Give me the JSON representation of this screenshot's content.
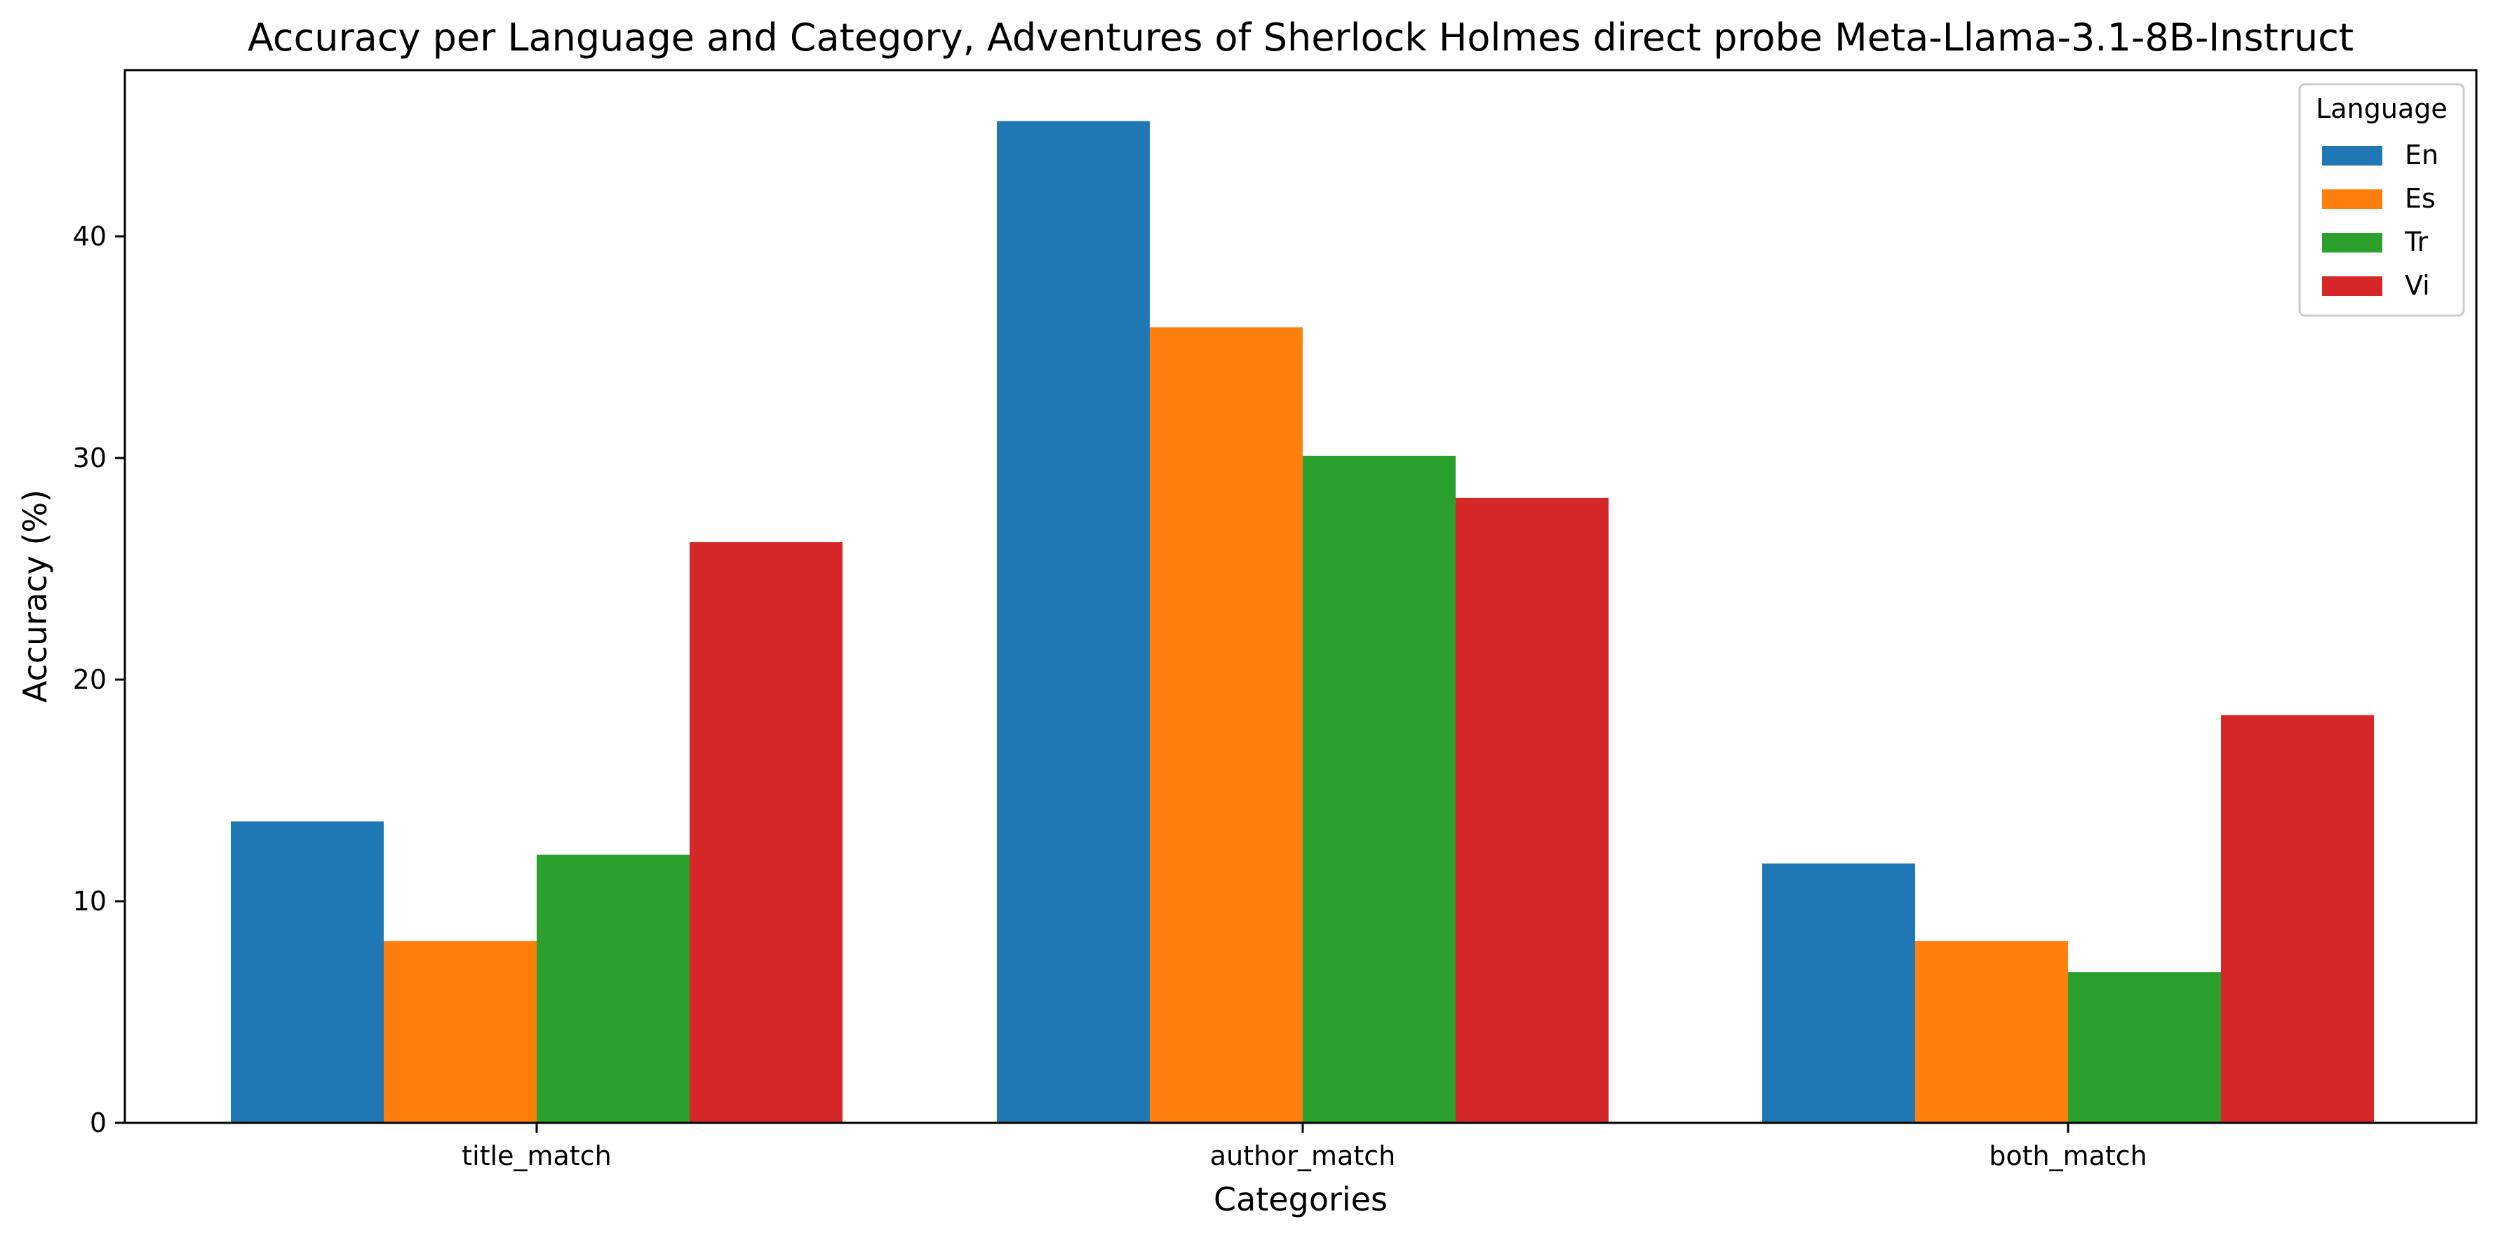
{
  "chart_data": {
    "type": "bar",
    "title": "Accuracy per Language and Category, Adventures of Sherlock Holmes direct probe Meta-Llama-3.1-8B-Instruct",
    "xlabel": "Categories",
    "ylabel": "Accuracy (%)",
    "categories": [
      "title_match",
      "author_match",
      "both_match"
    ],
    "series": [
      {
        "name": "En",
        "color": "#1f77b4",
        "values": [
          13.6,
          45.2,
          11.7
        ]
      },
      {
        "name": "Es",
        "color": "#ff7f0e",
        "values": [
          8.2,
          35.9,
          8.2
        ]
      },
      {
        "name": "Tr",
        "color": "#2ca02c",
        "values": [
          12.1,
          30.1,
          6.8
        ]
      },
      {
        "name": "Vi",
        "color": "#d62728",
        "values": [
          26.2,
          28.2,
          18.4
        ]
      }
    ],
    "ylim": [
      0,
      47.5
    ],
    "yticks": [
      0,
      10,
      20,
      30,
      40
    ],
    "legend": {
      "title": "Language",
      "placement": "top-right"
    },
    "grid": false
  }
}
